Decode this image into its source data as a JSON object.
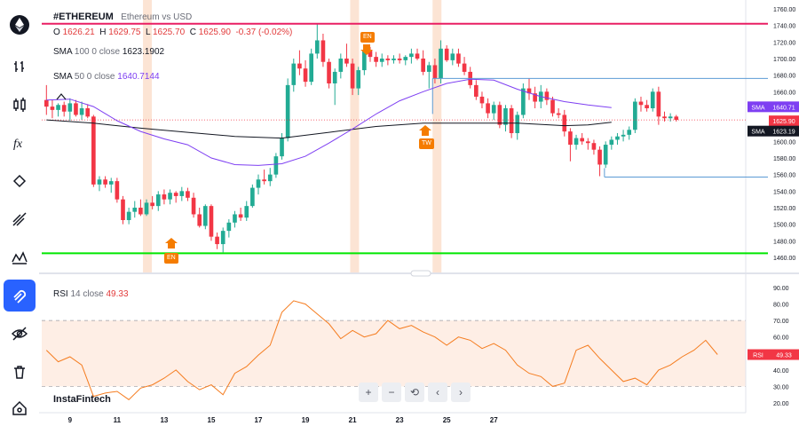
{
  "header": {
    "symbol": "#ETHEREUM",
    "description": "Ethereum vs USD",
    "o_label": "O",
    "o_value": "1626.21",
    "h_label": "H",
    "h_value": "1629.75",
    "l_label": "L",
    "l_value": "1625.70",
    "c_label": "C",
    "c_value": "1625.90",
    "change": "-0.37 (-0.02%)"
  },
  "indicators": {
    "sma100": {
      "name": "SMA",
      "params": "100  0  close",
      "value": "1623.1902"
    },
    "sma50": {
      "name": "SMA",
      "params": "50  0  close",
      "value": "1640.7144"
    },
    "rsi": {
      "name": "RSI",
      "params": "14  close",
      "value": "49.33"
    }
  },
  "price_tags": {
    "sma50": {
      "label": "SMA",
      "value": "1640.71"
    },
    "close": {
      "value": "1625.90"
    },
    "sma100": {
      "label": "SMA",
      "value": "1623.19"
    },
    "rsi": {
      "label": "RSI",
      "value": "49.33"
    }
  },
  "markers": [
    {
      "label": "EN",
      "direction": "down"
    },
    {
      "label": "EN",
      "direction": "up"
    },
    {
      "label": "TW",
      "direction": "up"
    }
  ],
  "watermark": "InstaFintech",
  "nav_buttons": [
    "+",
    "−",
    "⟲",
    "‹",
    "›"
  ],
  "sidebar_icons": [
    "logo-icon",
    "bar-type-icon",
    "candles-icon",
    "indicators-icon",
    "drawing-icon",
    "trend-tools-icon",
    "patterns-icon",
    "magnet-icon",
    "hide-icon",
    "delete-all-icon",
    "home-icon"
  ],
  "colors": {
    "up": "#22ab94",
    "down": "#f23645",
    "sma50": "#7e3ff2",
    "sma100": "#131722",
    "rsi": "#f57c1f",
    "hline_top": "#e91e63",
    "hline_bottom": "#00e600",
    "highlight": "#fbd8c2",
    "box_line": "#5b9bd5",
    "accent": "#2962ff"
  },
  "chart_data": {
    "type": "candlestick",
    "x_tick_labels": [
      "9",
      "11",
      "13",
      "15",
      "17",
      "19",
      "21",
      "23",
      "25",
      "27"
    ],
    "y_tick_labels": [
      "1760.00",
      "1740.00",
      "1720.00",
      "1700.00",
      "1680.00",
      "1660.00",
      "1640.00",
      "1620.00",
      "1600.00",
      "1580.00",
      "1560.00",
      "1540.00",
      "1520.00",
      "1500.00",
      "1480.00",
      "1460.00"
    ],
    "ylim": [
      1450,
      1765
    ],
    "rsi_tick_labels": [
      "90.00",
      "80.00",
      "70.00",
      "60.00",
      "50.00",
      "40.00",
      "30.00",
      "20.00"
    ],
    "rsi_ylim": [
      18,
      92
    ],
    "horizontal_levels": [
      1742,
      1465
    ],
    "box_levels": [
      1676,
      1557
    ],
    "highlight_days": [
      12.1,
      20.9,
      24.4
    ],
    "sma50": [
      [
        8,
        1650
      ],
      [
        9,
        1651
      ],
      [
        10,
        1642
      ],
      [
        11,
        1625
      ],
      [
        12,
        1612
      ],
      [
        13,
        1603
      ],
      [
        14,
        1596
      ],
      [
        15,
        1580
      ],
      [
        16,
        1572
      ],
      [
        17,
        1571
      ],
      [
        18,
        1573
      ],
      [
        19,
        1582
      ],
      [
        20,
        1598
      ],
      [
        21,
        1615
      ],
      [
        22,
        1633
      ],
      [
        23,
        1649
      ],
      [
        24,
        1660
      ],
      [
        25,
        1670
      ],
      [
        26,
        1675
      ],
      [
        27,
        1674
      ],
      [
        28,
        1663
      ],
      [
        29,
        1654
      ],
      [
        30,
        1648
      ],
      [
        31,
        1644
      ],
      [
        32,
        1640.71
      ]
    ],
    "sma100": [
      [
        8,
        1626
      ],
      [
        10,
        1622
      ],
      [
        12,
        1616
      ],
      [
        14,
        1611
      ],
      [
        16,
        1606
      ],
      [
        18,
        1604
      ],
      [
        20,
        1611
      ],
      [
        22,
        1618
      ],
      [
        24,
        1622
      ],
      [
        26,
        1622
      ],
      [
        28,
        1622
      ],
      [
        30,
        1619
      ],
      [
        31,
        1620
      ],
      [
        32,
        1623.19
      ]
    ],
    "candles": [
      {
        "d": 8.0,
        "o": 1650,
        "h": 1668,
        "l": 1632,
        "c": 1642
      },
      {
        "d": 8.25,
        "o": 1642,
        "h": 1650,
        "l": 1628,
        "c": 1638
      },
      {
        "d": 8.5,
        "o": 1638,
        "h": 1646,
        "l": 1630,
        "c": 1644
      },
      {
        "d": 8.75,
        "o": 1644,
        "h": 1648,
        "l": 1630,
        "c": 1636
      },
      {
        "d": 9.0,
        "o": 1636,
        "h": 1652,
        "l": 1625,
        "c": 1646
      },
      {
        "d": 9.25,
        "o": 1646,
        "h": 1650,
        "l": 1630,
        "c": 1632
      },
      {
        "d": 9.5,
        "o": 1632,
        "h": 1648,
        "l": 1626,
        "c": 1640
      },
      {
        "d": 9.75,
        "o": 1640,
        "h": 1645,
        "l": 1628,
        "c": 1630
      },
      {
        "d": 10.0,
        "o": 1630,
        "h": 1632,
        "l": 1545,
        "c": 1548
      },
      {
        "d": 10.25,
        "o": 1548,
        "h": 1558,
        "l": 1540,
        "c": 1554
      },
      {
        "d": 10.5,
        "o": 1554,
        "h": 1558,
        "l": 1544,
        "c": 1548
      },
      {
        "d": 10.75,
        "o": 1548,
        "h": 1556,
        "l": 1538,
        "c": 1552
      },
      {
        "d": 11.0,
        "o": 1552,
        "h": 1556,
        "l": 1526,
        "c": 1530
      },
      {
        "d": 11.25,
        "o": 1530,
        "h": 1534,
        "l": 1500,
        "c": 1505
      },
      {
        "d": 11.5,
        "o": 1505,
        "h": 1520,
        "l": 1500,
        "c": 1515
      },
      {
        "d": 11.75,
        "o": 1515,
        "h": 1528,
        "l": 1508,
        "c": 1520
      },
      {
        "d": 12.0,
        "o": 1520,
        "h": 1530,
        "l": 1510,
        "c": 1512
      },
      {
        "d": 12.25,
        "o": 1512,
        "h": 1530,
        "l": 1510,
        "c": 1526
      },
      {
        "d": 12.5,
        "o": 1526,
        "h": 1534,
        "l": 1518,
        "c": 1522
      },
      {
        "d": 12.75,
        "o": 1522,
        "h": 1540,
        "l": 1516,
        "c": 1536
      },
      {
        "d": 13.0,
        "o": 1536,
        "h": 1542,
        "l": 1524,
        "c": 1530
      },
      {
        "d": 13.25,
        "o": 1530,
        "h": 1542,
        "l": 1524,
        "c": 1538
      },
      {
        "d": 13.5,
        "o": 1538,
        "h": 1540,
        "l": 1526,
        "c": 1534
      },
      {
        "d": 13.75,
        "o": 1534,
        "h": 1545,
        "l": 1528,
        "c": 1540
      },
      {
        "d": 14.0,
        "o": 1540,
        "h": 1544,
        "l": 1528,
        "c": 1532
      },
      {
        "d": 14.25,
        "o": 1532,
        "h": 1538,
        "l": 1508,
        "c": 1512
      },
      {
        "d": 14.5,
        "o": 1512,
        "h": 1520,
        "l": 1496,
        "c": 1498
      },
      {
        "d": 14.75,
        "o": 1498,
        "h": 1524,
        "l": 1494,
        "c": 1522
      },
      {
        "d": 15.0,
        "o": 1522,
        "h": 1524,
        "l": 1480,
        "c": 1485
      },
      {
        "d": 15.25,
        "o": 1485,
        "h": 1490,
        "l": 1470,
        "c": 1476
      },
      {
        "d": 15.5,
        "o": 1476,
        "h": 1496,
        "l": 1466,
        "c": 1492
      },
      {
        "d": 15.75,
        "o": 1492,
        "h": 1506,
        "l": 1484,
        "c": 1502
      },
      {
        "d": 16.0,
        "o": 1502,
        "h": 1516,
        "l": 1496,
        "c": 1512
      },
      {
        "d": 16.25,
        "o": 1512,
        "h": 1520,
        "l": 1504,
        "c": 1508
      },
      {
        "d": 16.5,
        "o": 1508,
        "h": 1528,
        "l": 1504,
        "c": 1522
      },
      {
        "d": 16.75,
        "o": 1522,
        "h": 1548,
        "l": 1520,
        "c": 1544
      },
      {
        "d": 17.0,
        "o": 1544,
        "h": 1560,
        "l": 1536,
        "c": 1554
      },
      {
        "d": 17.25,
        "o": 1554,
        "h": 1566,
        "l": 1548,
        "c": 1552
      },
      {
        "d": 17.5,
        "o": 1552,
        "h": 1568,
        "l": 1546,
        "c": 1560
      },
      {
        "d": 17.75,
        "o": 1560,
        "h": 1586,
        "l": 1556,
        "c": 1582
      },
      {
        "d": 18.0,
        "o": 1582,
        "h": 1610,
        "l": 1578,
        "c": 1604
      },
      {
        "d": 18.25,
        "o": 1604,
        "h": 1676,
        "l": 1600,
        "c": 1668
      },
      {
        "d": 18.5,
        "o": 1668,
        "h": 1700,
        "l": 1660,
        "c": 1694
      },
      {
        "d": 18.75,
        "o": 1694,
        "h": 1710,
        "l": 1680,
        "c": 1688
      },
      {
        "d": 19.0,
        "o": 1688,
        "h": 1698,
        "l": 1666,
        "c": 1672
      },
      {
        "d": 19.25,
        "o": 1672,
        "h": 1712,
        "l": 1668,
        "c": 1706
      },
      {
        "d": 19.5,
        "o": 1706,
        "h": 1742,
        "l": 1700,
        "c": 1722
      },
      {
        "d": 19.75,
        "o": 1722,
        "h": 1730,
        "l": 1690,
        "c": 1696
      },
      {
        "d": 20.0,
        "o": 1696,
        "h": 1700,
        "l": 1664,
        "c": 1670
      },
      {
        "d": 20.25,
        "o": 1670,
        "h": 1688,
        "l": 1644,
        "c": 1684
      },
      {
        "d": 20.5,
        "o": 1684,
        "h": 1706,
        "l": 1676,
        "c": 1700
      },
      {
        "d": 20.75,
        "o": 1700,
        "h": 1718,
        "l": 1690,
        "c": 1694
      },
      {
        "d": 21.0,
        "o": 1694,
        "h": 1700,
        "l": 1656,
        "c": 1664
      },
      {
        "d": 21.25,
        "o": 1664,
        "h": 1690,
        "l": 1656,
        "c": 1686
      },
      {
        "d": 21.5,
        "o": 1686,
        "h": 1716,
        "l": 1680,
        "c": 1710
      },
      {
        "d": 21.75,
        "o": 1710,
        "h": 1714,
        "l": 1696,
        "c": 1702
      },
      {
        "d": 22.0,
        "o": 1702,
        "h": 1708,
        "l": 1690,
        "c": 1696
      },
      {
        "d": 22.25,
        "o": 1696,
        "h": 1706,
        "l": 1690,
        "c": 1700
      },
      {
        "d": 22.5,
        "o": 1700,
        "h": 1704,
        "l": 1692,
        "c": 1698
      },
      {
        "d": 22.75,
        "o": 1698,
        "h": 1704,
        "l": 1694,
        "c": 1700
      },
      {
        "d": 23.0,
        "o": 1700,
        "h": 1706,
        "l": 1694,
        "c": 1698
      },
      {
        "d": 23.25,
        "o": 1698,
        "h": 1704,
        "l": 1692,
        "c": 1702
      },
      {
        "d": 23.5,
        "o": 1702,
        "h": 1712,
        "l": 1694,
        "c": 1706
      },
      {
        "d": 23.75,
        "o": 1706,
        "h": 1712,
        "l": 1698,
        "c": 1700
      },
      {
        "d": 24.0,
        "o": 1700,
        "h": 1710,
        "l": 1680,
        "c": 1684
      },
      {
        "d": 24.25,
        "o": 1684,
        "h": 1696,
        "l": 1664,
        "c": 1692
      },
      {
        "d": 24.5,
        "o": 1692,
        "h": 1700,
        "l": 1670,
        "c": 1676
      },
      {
        "d": 24.75,
        "o": 1676,
        "h": 1722,
        "l": 1670,
        "c": 1712
      },
      {
        "d": 25.0,
        "o": 1712,
        "h": 1716,
        "l": 1696,
        "c": 1698
      },
      {
        "d": 25.25,
        "o": 1698,
        "h": 1712,
        "l": 1692,
        "c": 1706
      },
      {
        "d": 25.5,
        "o": 1706,
        "h": 1712,
        "l": 1690,
        "c": 1694
      },
      {
        "d": 25.75,
        "o": 1694,
        "h": 1702,
        "l": 1680,
        "c": 1684
      },
      {
        "d": 26.0,
        "o": 1684,
        "h": 1690,
        "l": 1664,
        "c": 1668
      },
      {
        "d": 26.25,
        "o": 1668,
        "h": 1674,
        "l": 1650,
        "c": 1654
      },
      {
        "d": 26.5,
        "o": 1654,
        "h": 1660,
        "l": 1640,
        "c": 1646
      },
      {
        "d": 26.75,
        "o": 1646,
        "h": 1652,
        "l": 1628,
        "c": 1634
      },
      {
        "d": 27.0,
        "o": 1634,
        "h": 1648,
        "l": 1626,
        "c": 1644
      },
      {
        "d": 27.25,
        "o": 1644,
        "h": 1648,
        "l": 1616,
        "c": 1620
      },
      {
        "d": 27.5,
        "o": 1620,
        "h": 1644,
        "l": 1612,
        "c": 1640
      },
      {
        "d": 27.75,
        "o": 1640,
        "h": 1644,
        "l": 1604,
        "c": 1610
      },
      {
        "d": 28.0,
        "o": 1610,
        "h": 1636,
        "l": 1602,
        "c": 1632
      },
      {
        "d": 28.25,
        "o": 1632,
        "h": 1670,
        "l": 1628,
        "c": 1664
      },
      {
        "d": 28.5,
        "o": 1664,
        "h": 1676,
        "l": 1650,
        "c": 1658
      },
      {
        "d": 28.75,
        "o": 1658,
        "h": 1666,
        "l": 1640,
        "c": 1648
      },
      {
        "d": 29.0,
        "o": 1648,
        "h": 1668,
        "l": 1640,
        "c": 1660
      },
      {
        "d": 29.25,
        "o": 1660,
        "h": 1664,
        "l": 1644,
        "c": 1650
      },
      {
        "d": 29.5,
        "o": 1650,
        "h": 1654,
        "l": 1630,
        "c": 1634
      },
      {
        "d": 29.75,
        "o": 1634,
        "h": 1640,
        "l": 1628,
        "c": 1632
      },
      {
        "d": 30.0,
        "o": 1632,
        "h": 1638,
        "l": 1606,
        "c": 1612
      },
      {
        "d": 30.25,
        "o": 1612,
        "h": 1616,
        "l": 1576,
        "c": 1596
      },
      {
        "d": 30.5,
        "o": 1596,
        "h": 1608,
        "l": 1590,
        "c": 1604
      },
      {
        "d": 30.75,
        "o": 1604,
        "h": 1610,
        "l": 1596,
        "c": 1600
      },
      {
        "d": 31.0,
        "o": 1600,
        "h": 1604,
        "l": 1590,
        "c": 1598
      },
      {
        "d": 31.25,
        "o": 1598,
        "h": 1602,
        "l": 1584,
        "c": 1590
      },
      {
        "d": 31.5,
        "o": 1590,
        "h": 1594,
        "l": 1558,
        "c": 1572
      },
      {
        "d": 31.75,
        "o": 1572,
        "h": 1600,
        "l": 1568,
        "c": 1596
      },
      {
        "d": 32.0,
        "o": 1596,
        "h": 1606,
        "l": 1590,
        "c": 1602
      },
      {
        "d": 32.25,
        "o": 1602,
        "h": 1610,
        "l": 1596,
        "c": 1606
      },
      {
        "d": 32.5,
        "o": 1606,
        "h": 1614,
        "l": 1600,
        "c": 1608
      },
      {
        "d": 32.75,
        "o": 1608,
        "h": 1618,
        "l": 1602,
        "c": 1614
      },
      {
        "d": 33.0,
        "o": 1614,
        "h": 1652,
        "l": 1610,
        "c": 1648
      },
      {
        "d": 33.25,
        "o": 1648,
        "h": 1654,
        "l": 1636,
        "c": 1644
      },
      {
        "d": 33.5,
        "o": 1644,
        "h": 1650,
        "l": 1636,
        "c": 1640
      },
      {
        "d": 33.75,
        "o": 1640,
        "h": 1664,
        "l": 1636,
        "c": 1660
      },
      {
        "d": 34.0,
        "o": 1660,
        "h": 1666,
        "l": 1620,
        "c": 1630
      },
      {
        "d": 34.25,
        "o": 1630,
        "h": 1636,
        "l": 1624,
        "c": 1628
      },
      {
        "d": 34.5,
        "o": 1628,
        "h": 1634,
        "l": 1624,
        "c": 1630
      },
      {
        "d": 34.75,
        "o": 1630,
        "h": 1632,
        "l": 1624,
        "c": 1626
      }
    ],
    "rsi": [
      [
        8,
        52
      ],
      [
        8.5,
        45
      ],
      [
        9,
        48
      ],
      [
        9.5,
        43
      ],
      [
        10,
        24
      ],
      [
        10.5,
        26
      ],
      [
        11,
        27
      ],
      [
        11.5,
        22
      ],
      [
        12,
        29
      ],
      [
        12.5,
        31
      ],
      [
        13,
        35
      ],
      [
        13.5,
        40
      ],
      [
        14,
        33
      ],
      [
        14.5,
        28
      ],
      [
        15,
        31
      ],
      [
        15.5,
        25
      ],
      [
        16,
        38
      ],
      [
        16.5,
        42
      ],
      [
        17,
        49
      ],
      [
        17.5,
        55
      ],
      [
        18,
        75
      ],
      [
        18.5,
        82
      ],
      [
        19,
        80
      ],
      [
        19.5,
        74
      ],
      [
        20,
        68
      ],
      [
        20.5,
        59
      ],
      [
        21,
        64
      ],
      [
        21.5,
        60
      ],
      [
        22,
        62
      ],
      [
        22.5,
        70
      ],
      [
        23,
        65
      ],
      [
        23.5,
        67
      ],
      [
        24,
        63
      ],
      [
        24.5,
        60
      ],
      [
        25,
        55
      ],
      [
        25.5,
        60
      ],
      [
        26,
        58
      ],
      [
        26.5,
        53
      ],
      [
        27,
        56
      ],
      [
        27.5,
        52
      ],
      [
        28,
        43
      ],
      [
        28.5,
        38
      ],
      [
        29,
        36
      ],
      [
        29.5,
        30
      ],
      [
        30,
        32
      ],
      [
        30.5,
        52
      ],
      [
        31,
        55
      ],
      [
        31.5,
        47
      ],
      [
        32,
        40
      ],
      [
        32.5,
        33
      ],
      [
        33,
        35
      ],
      [
        33.5,
        31
      ],
      [
        34,
        40
      ],
      [
        34.5,
        43
      ],
      [
        35,
        48
      ],
      [
        35.5,
        52
      ],
      [
        36,
        58
      ],
      [
        36.5,
        49.33
      ]
    ]
  }
}
